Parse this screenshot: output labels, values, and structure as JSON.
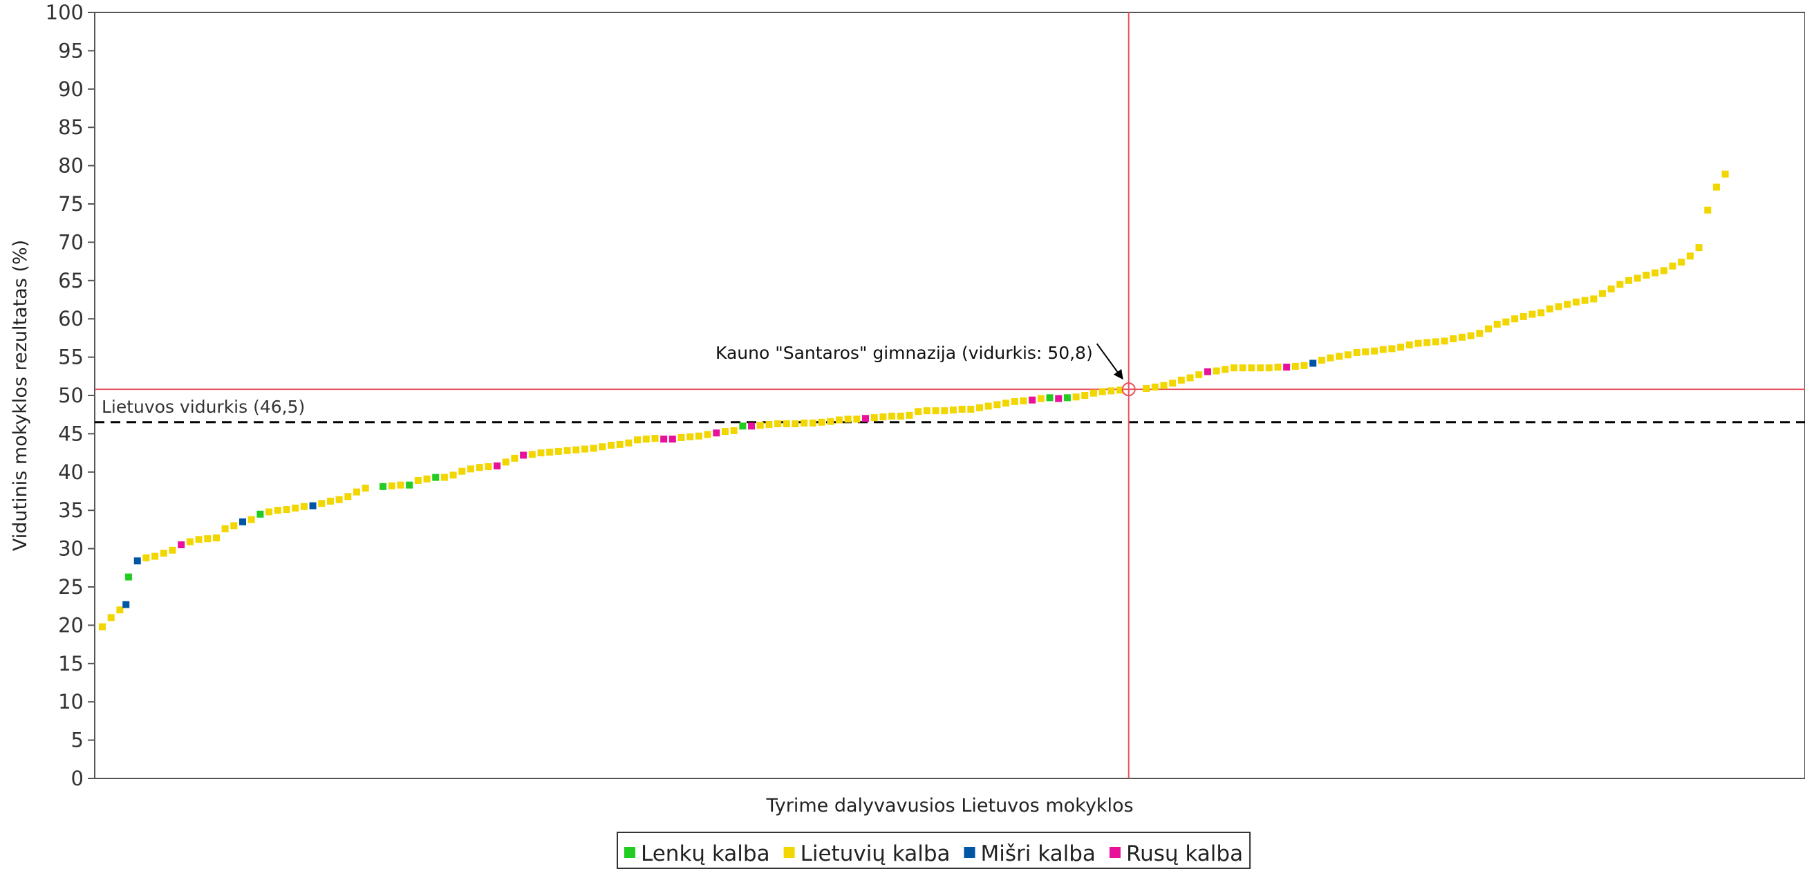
{
  "chart_data": {
    "type": "scatter",
    "xlabel": "Tyrime dalyvavusios Lietuvos mokyklos",
    "ylabel": "Vidutinis mokyklos rezultatas (%)",
    "ylim": [
      0,
      100
    ],
    "yticks": [
      0,
      5,
      10,
      15,
      20,
      25,
      30,
      35,
      40,
      45,
      50,
      55,
      60,
      65,
      70,
      75,
      80,
      85,
      90,
      95,
      100
    ],
    "xlim": [
      0,
      200
    ],
    "grid": false,
    "legend_position": "bottom-center",
    "series": [
      {
        "name": "Lenkų kalba",
        "color": "#22cc22",
        "points": [
          [
            4,
            26.3
          ],
          [
            19,
            34.5
          ],
          [
            33,
            38.1
          ],
          [
            36,
            38.3
          ],
          [
            39,
            39.3
          ],
          [
            74,
            46.0
          ],
          [
            109,
            49.7
          ],
          [
            111,
            49.7
          ]
        ]
      },
      {
        "name": "Lietuvių kalba",
        "color": "#f2d600",
        "points": [
          [
            1,
            19.8
          ],
          [
            2,
            21.0
          ],
          [
            3,
            22.0
          ],
          [
            6,
            28.8
          ],
          [
            7,
            29.0
          ],
          [
            8,
            29.4
          ],
          [
            9,
            29.8
          ],
          [
            11,
            30.9
          ],
          [
            12,
            31.2
          ],
          [
            13,
            31.3
          ],
          [
            14,
            31.4
          ],
          [
            15,
            32.6
          ],
          [
            16,
            33.0
          ],
          [
            18,
            33.8
          ],
          [
            20,
            34.8
          ],
          [
            21,
            35.0
          ],
          [
            22,
            35.1
          ],
          [
            23,
            35.3
          ],
          [
            24,
            35.5
          ],
          [
            26,
            35.9
          ],
          [
            27,
            36.2
          ],
          [
            28,
            36.4
          ],
          [
            29,
            36.8
          ],
          [
            30,
            37.4
          ],
          [
            31,
            37.9
          ],
          [
            34,
            38.2
          ],
          [
            35,
            38.3
          ],
          [
            37,
            38.9
          ],
          [
            38,
            39.1
          ],
          [
            40,
            39.3
          ],
          [
            41,
            39.6
          ],
          [
            42,
            40.1
          ],
          [
            43,
            40.4
          ],
          [
            44,
            40.6
          ],
          [
            45,
            40.7
          ],
          [
            47,
            41.3
          ],
          [
            48,
            41.8
          ],
          [
            50,
            42.3
          ],
          [
            51,
            42.5
          ],
          [
            52,
            42.6
          ],
          [
            53,
            42.7
          ],
          [
            54,
            42.8
          ],
          [
            55,
            42.9
          ],
          [
            56,
            43.0
          ],
          [
            57,
            43.1
          ],
          [
            58,
            43.3
          ],
          [
            59,
            43.5
          ],
          [
            60,
            43.6
          ],
          [
            61,
            43.8
          ],
          [
            62,
            44.2
          ],
          [
            63,
            44.3
          ],
          [
            64,
            44.4
          ],
          [
            67,
            44.5
          ],
          [
            68,
            44.6
          ],
          [
            69,
            44.7
          ],
          [
            70,
            44.9
          ],
          [
            72,
            45.3
          ],
          [
            73,
            45.4
          ],
          [
            76,
            46.1
          ],
          [
            77,
            46.2
          ],
          [
            78,
            46.3
          ],
          [
            79,
            46.3
          ],
          [
            80,
            46.3
          ],
          [
            81,
            46.4
          ],
          [
            82,
            46.4
          ],
          [
            83,
            46.5
          ],
          [
            84,
            46.6
          ],
          [
            85,
            46.8
          ],
          [
            86,
            46.9
          ],
          [
            87,
            46.9
          ],
          [
            89,
            47.1
          ],
          [
            90,
            47.2
          ],
          [
            91,
            47.3
          ],
          [
            92,
            47.3
          ],
          [
            93,
            47.4
          ],
          [
            94,
            47.9
          ],
          [
            95,
            48.0
          ],
          [
            96,
            48.0
          ],
          [
            97,
            48.0
          ],
          [
            98,
            48.1
          ],
          [
            99,
            48.2
          ],
          [
            100,
            48.2
          ],
          [
            101,
            48.4
          ],
          [
            102,
            48.6
          ],
          [
            103,
            48.8
          ],
          [
            104,
            49.0
          ],
          [
            105,
            49.2
          ],
          [
            106,
            49.3
          ],
          [
            108,
            49.6
          ],
          [
            112,
            49.8
          ],
          [
            113,
            50.0
          ],
          [
            114,
            50.3
          ],
          [
            115,
            50.5
          ],
          [
            116,
            50.6
          ],
          [
            117,
            50.7
          ],
          [
            120,
            50.9
          ],
          [
            121,
            51.1
          ],
          [
            122,
            51.3
          ],
          [
            123,
            51.6
          ],
          [
            124,
            52.0
          ],
          [
            125,
            52.3
          ],
          [
            126,
            52.7
          ],
          [
            128,
            53.2
          ],
          [
            129,
            53.4
          ],
          [
            130,
            53.6
          ],
          [
            131,
            53.6
          ],
          [
            132,
            53.6
          ],
          [
            133,
            53.6
          ],
          [
            134,
            53.6
          ],
          [
            135,
            53.7
          ],
          [
            137,
            53.8
          ],
          [
            138,
            53.9
          ],
          [
            140,
            54.6
          ],
          [
            141,
            54.9
          ],
          [
            142,
            55.1
          ],
          [
            143,
            55.3
          ],
          [
            144,
            55.6
          ],
          [
            145,
            55.7
          ],
          [
            146,
            55.8
          ],
          [
            147,
            56.0
          ],
          [
            148,
            56.1
          ],
          [
            149,
            56.3
          ],
          [
            150,
            56.6
          ],
          [
            151,
            56.8
          ],
          [
            152,
            56.9
          ],
          [
            153,
            57.0
          ],
          [
            154,
            57.1
          ],
          [
            155,
            57.4
          ],
          [
            156,
            57.6
          ],
          [
            157,
            57.8
          ],
          [
            158,
            58.1
          ],
          [
            159,
            58.7
          ],
          [
            160,
            59.3
          ],
          [
            161,
            59.6
          ],
          [
            162,
            60.0
          ],
          [
            163,
            60.3
          ],
          [
            164,
            60.6
          ],
          [
            165,
            60.8
          ],
          [
            166,
            61.3
          ],
          [
            167,
            61.6
          ],
          [
            168,
            61.9
          ],
          [
            169,
            62.2
          ],
          [
            170,
            62.4
          ],
          [
            171,
            62.6
          ],
          [
            172,
            63.3
          ],
          [
            173,
            63.9
          ],
          [
            174,
            64.5
          ],
          [
            175,
            65.0
          ],
          [
            176,
            65.3
          ],
          [
            177,
            65.7
          ],
          [
            178,
            66.0
          ],
          [
            179,
            66.3
          ],
          [
            180,
            66.9
          ],
          [
            181,
            67.4
          ],
          [
            182,
            68.2
          ],
          [
            183,
            69.3
          ],
          [
            184,
            74.2
          ],
          [
            185,
            77.2
          ],
          [
            186,
            78.9
          ]
        ]
      },
      {
        "name": "Mišri kalba",
        "color": "#0055a5",
        "points": [
          [
            3.7,
            22.7
          ],
          [
            5,
            28.4
          ],
          [
            17,
            33.5
          ],
          [
            25,
            35.6
          ],
          [
            139,
            54.2
          ]
        ]
      },
      {
        "name": "Rusų kalba",
        "color": "#e8119a",
        "points": [
          [
            10,
            30.5
          ],
          [
            46,
            40.8
          ],
          [
            49,
            42.2
          ],
          [
            65,
            44.3
          ],
          [
            66,
            44.3
          ],
          [
            71,
            45.1
          ],
          [
            75,
            46.0
          ],
          [
            88,
            47.0
          ],
          [
            107,
            49.4
          ],
          [
            110,
            49.6
          ],
          [
            127,
            53.1
          ],
          [
            136,
            53.7
          ]
        ]
      }
    ],
    "reference_lines": [
      {
        "label": "Lietuvos vidurkis (46,5)",
        "value": 46.5,
        "orientation": "horizontal",
        "style": "dashed",
        "color": "#000000"
      },
      {
        "label": "",
        "value": 50.8,
        "orientation": "horizontal",
        "style": "solid",
        "color": "#e8505b"
      },
      {
        "label": "",
        "value": 118,
        "orientation": "vertical",
        "style": "solid",
        "color": "#e8505b"
      }
    ],
    "highlight": {
      "x": 118,
      "y": 50.8,
      "label": "Kauno \"Santaros\" gimnazija (vidurkis: 50,8)"
    }
  }
}
